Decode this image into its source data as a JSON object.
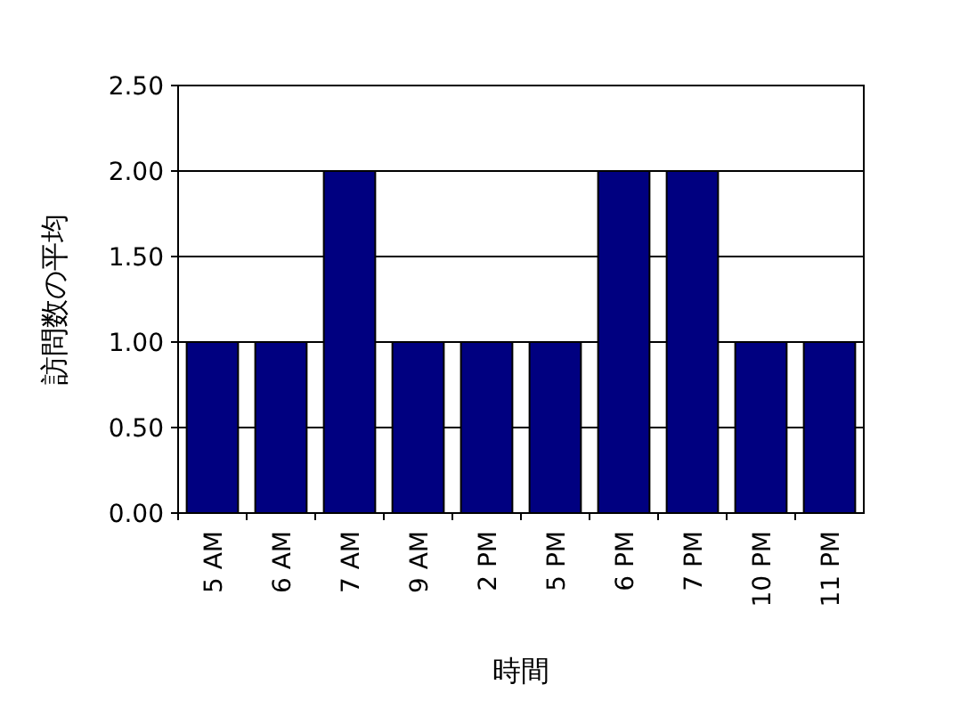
{
  "chart_data": {
    "type": "bar",
    "xlabel": "時間",
    "ylabel": "訪問数の平均",
    "categories": [
      "5 AM",
      "6 AM",
      "7 AM",
      "9 AM",
      "2 PM",
      "5 PM",
      "6 PM",
      "7 PM",
      "10 PM",
      "11 PM"
    ],
    "values": [
      1,
      1,
      2,
      1,
      1,
      1,
      2,
      2,
      1,
      1
    ],
    "color": "#000080",
    "ylim": [
      0,
      2.5
    ],
    "yticks": [
      {
        "value": 0,
        "label": "0.00"
      },
      {
        "value": 0.5,
        "label": "0.50"
      },
      {
        "value": 1,
        "label": "1.00"
      },
      {
        "value": 1.5,
        "label": "1.50"
      },
      {
        "value": 2,
        "label": "2.00"
      },
      {
        "value": 2.5,
        "label": "2.50"
      }
    ],
    "grid": "y"
  }
}
